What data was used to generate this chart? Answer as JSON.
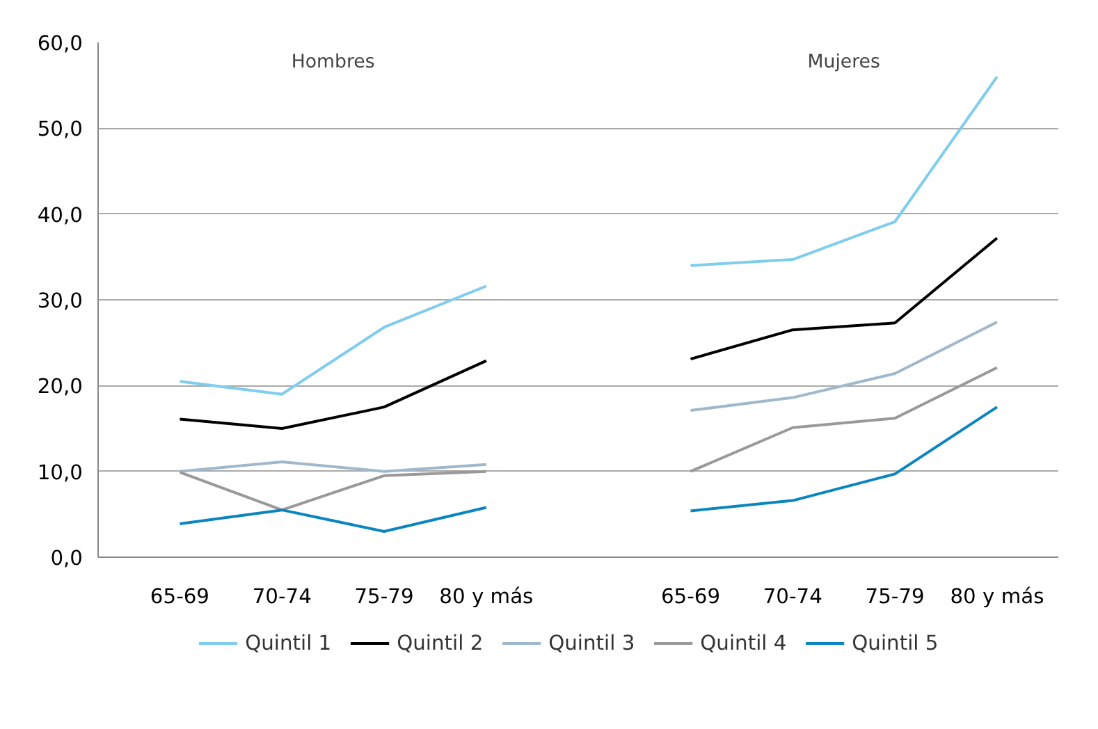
{
  "chart_data": {
    "type": "line",
    "categories": [
      "65-69",
      "70-74",
      "75-79",
      "80 y más",
      null,
      "65-69",
      "70-74",
      "75-79",
      "80 y más"
    ],
    "annotations": [
      "Hombres",
      "Mujeres"
    ],
    "series": [
      {
        "name": "Quintil 1",
        "color": "#7fcdee",
        "values": [
          20.5,
          19.0,
          26.8,
          31.6,
          null,
          34.0,
          34.7,
          39.1,
          56.0
        ]
      },
      {
        "name": "Quintil 2",
        "color": "#000000",
        "values": [
          16.1,
          15.0,
          17.5,
          22.9,
          null,
          23.1,
          26.5,
          27.3,
          37.2
        ]
      },
      {
        "name": "Quintil 3",
        "color": "#a0b8cc",
        "values": [
          10.0,
          11.1,
          10.0,
          10.8,
          null,
          17.1,
          18.6,
          21.4,
          27.4
        ]
      },
      {
        "name": "Quintil 4",
        "color": "#999999",
        "values": [
          9.9,
          5.5,
          9.5,
          10.0,
          null,
          10.0,
          15.1,
          16.2,
          22.1
        ]
      },
      {
        "name": "Quintil 5",
        "color": "#0a85c0",
        "values": [
          3.9,
          5.5,
          3.0,
          5.8,
          null,
          5.4,
          6.6,
          9.7,
          17.5
        ]
      }
    ],
    "ylim": [
      0,
      60
    ],
    "yticks": [
      {
        "value": 0,
        "label": "0,0"
      },
      {
        "value": 10,
        "label": "10,0"
      },
      {
        "value": 20,
        "label": "20,0"
      },
      {
        "value": 30,
        "label": "30,0"
      },
      {
        "value": 40,
        "label": "40,0"
      },
      {
        "value": 50,
        "label": "50,0"
      },
      {
        "value": 60,
        "label": "60,0"
      }
    ],
    "grid": "y",
    "legend": "bottom",
    "marker": "none",
    "line_style": "solid"
  }
}
